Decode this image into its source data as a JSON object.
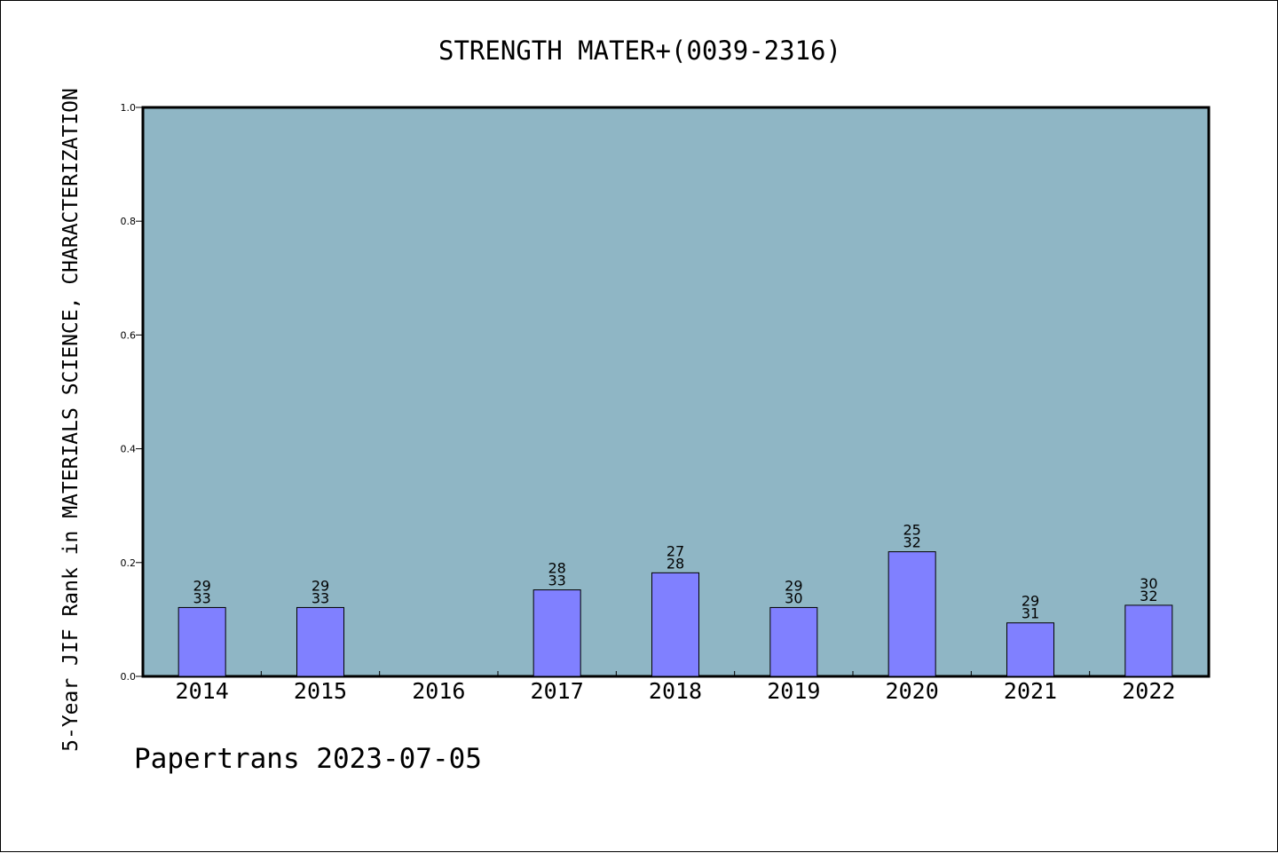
{
  "chart_data": {
    "type": "bar",
    "title": "STRENGTH MATER+(0039-2316)",
    "xlabel": "",
    "ylabel": "5-Year JIF Rank in MATERIALS SCIENCE, CHARACTERIZATION",
    "categories": [
      "2014",
      "2015",
      "2016",
      "2017",
      "2018",
      "2019",
      "2020",
      "2021",
      "2022"
    ],
    "values": [
      0.121,
      0.121,
      0,
      0.152,
      0.182,
      0.121,
      0.219,
      0.094,
      0.125
    ],
    "labels": [
      [
        "29",
        "33"
      ],
      [
        "29",
        "33"
      ],
      null,
      [
        "28",
        "33"
      ],
      [
        "27",
        "28"
      ],
      [
        "29",
        "30"
      ],
      [
        "25",
        "32"
      ],
      [
        "29",
        "31"
      ],
      [
        "30",
        "32"
      ]
    ],
    "ylim": [
      0,
      1.0
    ],
    "yticks": [
      "0.0",
      "0.2",
      "0.4",
      "0.6",
      "0.8",
      "1.0"
    ],
    "grid": false,
    "colors": {
      "plot_background": "#8fb6c5",
      "bar_fill": "#8080ff",
      "bar_stroke": "#000000",
      "axis": "#000000"
    }
  },
  "footer": {
    "text": "Papertrans 2023-07-05"
  }
}
